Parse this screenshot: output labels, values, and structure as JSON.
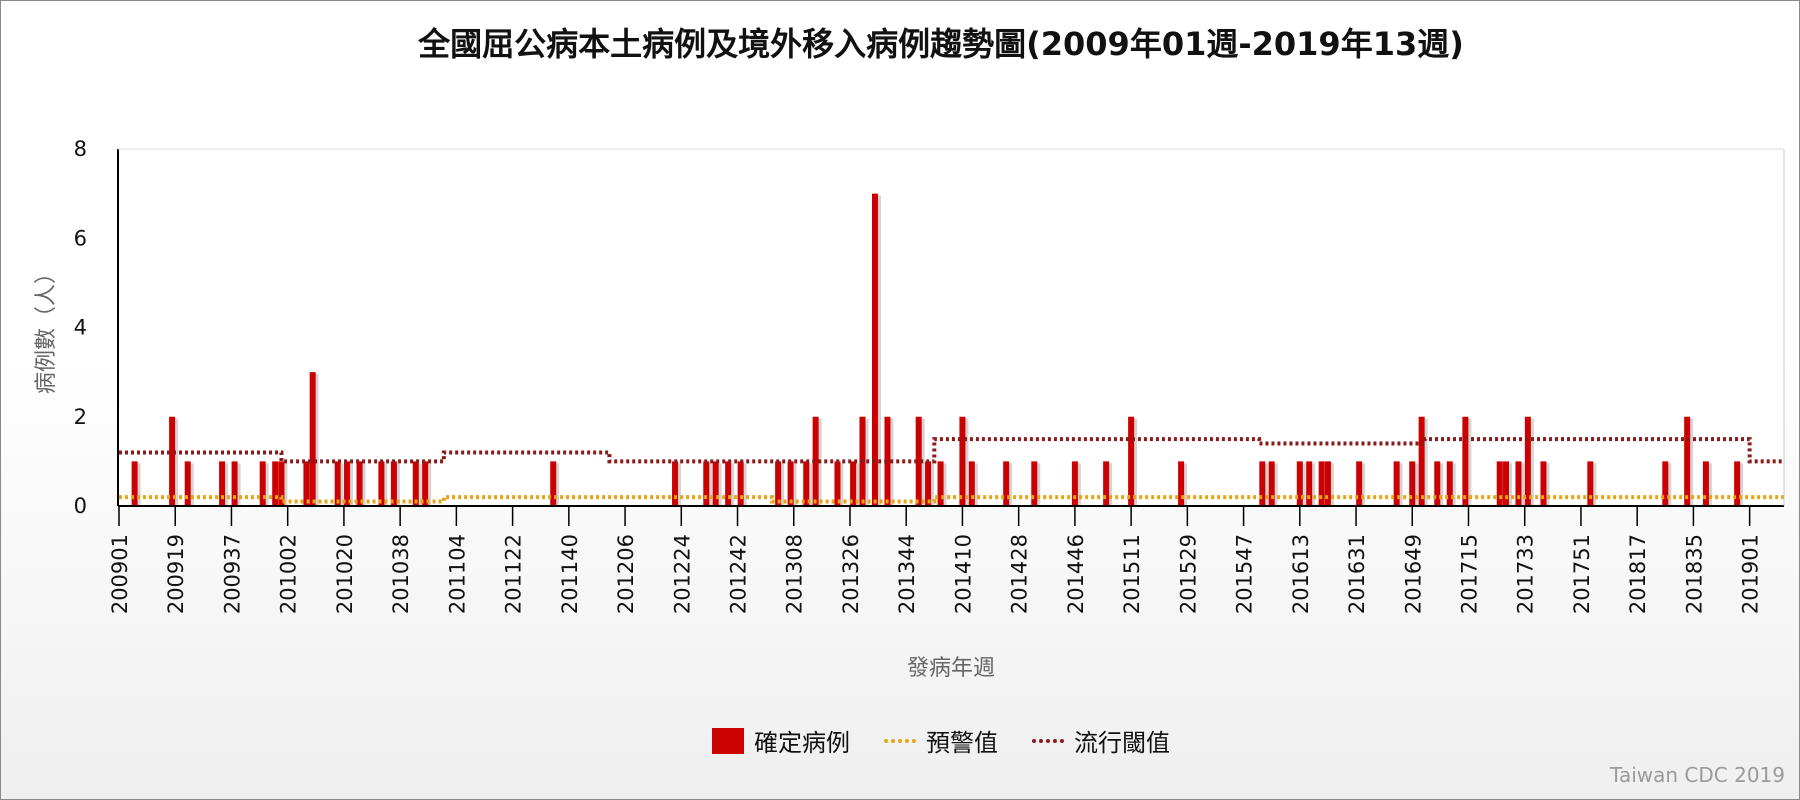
{
  "chart_data": {
    "type": "bar",
    "title": "全國屈公病本土病例及境外移入病例趨勢圖(2009年01週-2019年13週)",
    "xlabel": "發病年週",
    "ylabel": "病例數（人）",
    "ylim": [
      0,
      8
    ],
    "yticks": [
      0,
      2,
      4,
      6,
      8
    ],
    "grid": false,
    "legend_position": "bottom-center",
    "xtick_labels": [
      "200901",
      "200919",
      "200937",
      "201002",
      "201020",
      "201038",
      "201104",
      "201122",
      "201140",
      "201206",
      "201224",
      "201242",
      "201308",
      "201326",
      "201344",
      "201410",
      "201428",
      "201446",
      "201511",
      "201529",
      "201547",
      "201613",
      "201631",
      "201649",
      "201715",
      "201733",
      "201751",
      "201817",
      "201835",
      "201901"
    ],
    "total_weeks": 533,
    "series": [
      {
        "name": "確定病例",
        "kind": "bar",
        "color": "#cc0000",
        "points": [
          {
            "week": 5,
            "value": 1
          },
          {
            "week": 17,
            "value": 2
          },
          {
            "week": 22,
            "value": 1
          },
          {
            "week": 33,
            "value": 1
          },
          {
            "week": 37,
            "value": 1
          },
          {
            "week": 46,
            "value": 1
          },
          {
            "week": 50,
            "value": 1
          },
          {
            "week": 52,
            "value": 1
          },
          {
            "week": 60,
            "value": 1
          },
          {
            "week": 62,
            "value": 3
          },
          {
            "week": 70,
            "value": 1
          },
          {
            "week": 73,
            "value": 1
          },
          {
            "week": 77,
            "value": 1
          },
          {
            "week": 84,
            "value": 1
          },
          {
            "week": 88,
            "value": 1
          },
          {
            "week": 95,
            "value": 1
          },
          {
            "week": 98,
            "value": 1
          },
          {
            "week": 139,
            "value": 1
          },
          {
            "week": 178,
            "value": 1
          },
          {
            "week": 188,
            "value": 1
          },
          {
            "week": 191,
            "value": 1
          },
          {
            "week": 195,
            "value": 1
          },
          {
            "week": 199,
            "value": 1
          },
          {
            "week": 211,
            "value": 1
          },
          {
            "week": 215,
            "value": 1
          },
          {
            "week": 220,
            "value": 1
          },
          {
            "week": 223,
            "value": 2
          },
          {
            "week": 230,
            "value": 1
          },
          {
            "week": 235,
            "value": 1
          },
          {
            "week": 238,
            "value": 2
          },
          {
            "week": 242,
            "value": 7
          },
          {
            "week": 246,
            "value": 2
          },
          {
            "week": 256,
            "value": 2
          },
          {
            "week": 259,
            "value": 1
          },
          {
            "week": 263,
            "value": 1
          },
          {
            "week": 270,
            "value": 2
          },
          {
            "week": 273,
            "value": 1
          },
          {
            "week": 284,
            "value": 1
          },
          {
            "week": 293,
            "value": 1
          },
          {
            "week": 306,
            "value": 1
          },
          {
            "week": 316,
            "value": 1
          },
          {
            "week": 324,
            "value": 2
          },
          {
            "week": 340,
            "value": 1
          },
          {
            "week": 366,
            "value": 1
          },
          {
            "week": 369,
            "value": 1
          },
          {
            "week": 378,
            "value": 1
          },
          {
            "week": 381,
            "value": 1
          },
          {
            "week": 385,
            "value": 1
          },
          {
            "week": 387,
            "value": 1
          },
          {
            "week": 397,
            "value": 1
          },
          {
            "week": 409,
            "value": 1
          },
          {
            "week": 414,
            "value": 1
          },
          {
            "week": 417,
            "value": 2
          },
          {
            "week": 422,
            "value": 1
          },
          {
            "week": 426,
            "value": 1
          },
          {
            "week": 431,
            "value": 2
          },
          {
            "week": 442,
            "value": 1
          },
          {
            "week": 444,
            "value": 1
          },
          {
            "week": 448,
            "value": 1
          },
          {
            "week": 451,
            "value": 2
          },
          {
            "week": 456,
            "value": 1
          },
          {
            "week": 471,
            "value": 1
          },
          {
            "week": 495,
            "value": 1
          },
          {
            "week": 502,
            "value": 2
          },
          {
            "week": 508,
            "value": 1
          },
          {
            "week": 518,
            "value": 1
          }
        ]
      },
      {
        "name": "預警值",
        "kind": "line",
        "style": "dotted",
        "color": "#e8a317",
        "segments": [
          {
            "start": 0,
            "end": 52,
            "value": 0.2
          },
          {
            "start": 52,
            "end": 104,
            "value": 0.1
          },
          {
            "start": 104,
            "end": 209,
            "value": 0.2
          },
          {
            "start": 209,
            "end": 261,
            "value": 0.1
          },
          {
            "start": 261,
            "end": 533,
            "value": 0.2
          }
        ]
      },
      {
        "name": "流行閾值",
        "kind": "line",
        "style": "dotted",
        "color": "#8b1a1a",
        "segments": [
          {
            "start": 0,
            "end": 52,
            "value": 1.2
          },
          {
            "start": 52,
            "end": 104,
            "value": 1.0
          },
          {
            "start": 104,
            "end": 157,
            "value": 1.2
          },
          {
            "start": 157,
            "end": 261,
            "value": 1.0
          },
          {
            "start": 261,
            "end": 365,
            "value": 1.5
          },
          {
            "start": 365,
            "end": 418,
            "value": 1.4
          },
          {
            "start": 418,
            "end": 522,
            "value": 1.5
          },
          {
            "start": 522,
            "end": 533,
            "value": 1.0
          }
        ]
      }
    ]
  },
  "legend": {
    "items": [
      {
        "label": "確定病例"
      },
      {
        "label": "預警值"
      },
      {
        "label": "流行閾值"
      }
    ]
  },
  "credit": "Taiwan CDC 2019"
}
